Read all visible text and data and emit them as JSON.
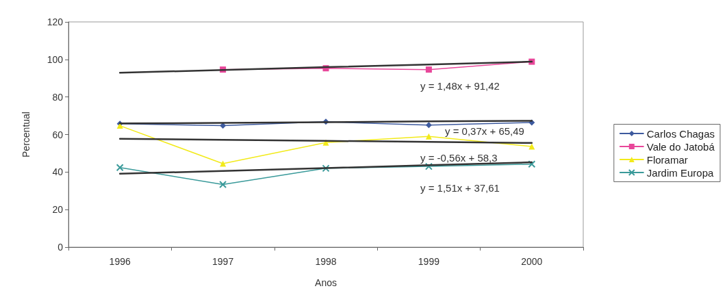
{
  "chart_data": {
    "type": "line",
    "xlabel": "Anos",
    "ylabel": "Percentual",
    "categories": [
      "1996",
      "1997",
      "1998",
      "1999",
      "2000"
    ],
    "series": [
      {
        "name": "Carlos Chagas",
        "color": "#3d5a9e",
        "marker": "diamond",
        "values": [
          65.7,
          64.7,
          66.8,
          65,
          66.4
        ]
      },
      {
        "name": "Vale do Jatobá",
        "color": "#e8479a",
        "marker": "square",
        "values": [
          null,
          94.6,
          95.3,
          94.6,
          98.8
        ]
      },
      {
        "name": "Floramar",
        "color": "#f2ea1a",
        "marker": "triangle",
        "values": [
          64.7,
          44.5,
          55.7,
          59,
          53.6
        ]
      },
      {
        "name": "Jardim Europa",
        "color": "#3a9a9a",
        "marker": "cross",
        "values": [
          42.4,
          33.4,
          42,
          43,
          44.2
        ]
      },
      {
        "color": "#333333",
        "marker": "none",
        "values": [
          92.9,
          94.4,
          95.9,
          97.3,
          98.8
        ]
      },
      {
        "color": "#333333",
        "marker": "none",
        "values": [
          65.9,
          66.2,
          66.6,
          67,
          67.3
        ]
      },
      {
        "color": "#333333",
        "marker": "none",
        "values": [
          57.7,
          57.2,
          56.6,
          56.1,
          55.5
        ]
      },
      {
        "color": "#333333",
        "marker": "none",
        "values": [
          39.1,
          40.6,
          42.1,
          43.7,
          45.2
        ]
      }
    ],
    "ylim": [
      0,
      120
    ],
    "yticks": [
      0,
      20,
      40,
      60,
      80,
      100,
      120
    ],
    "grid": false,
    "legend": "right",
    "line_style": "solid",
    "annotations": [
      "y = 1,48x + 91,42",
      "y = 0,37x + 65,49",
      "y = -0,56x + 58,3",
      "y = 1,51x + 37,61"
    ]
  }
}
